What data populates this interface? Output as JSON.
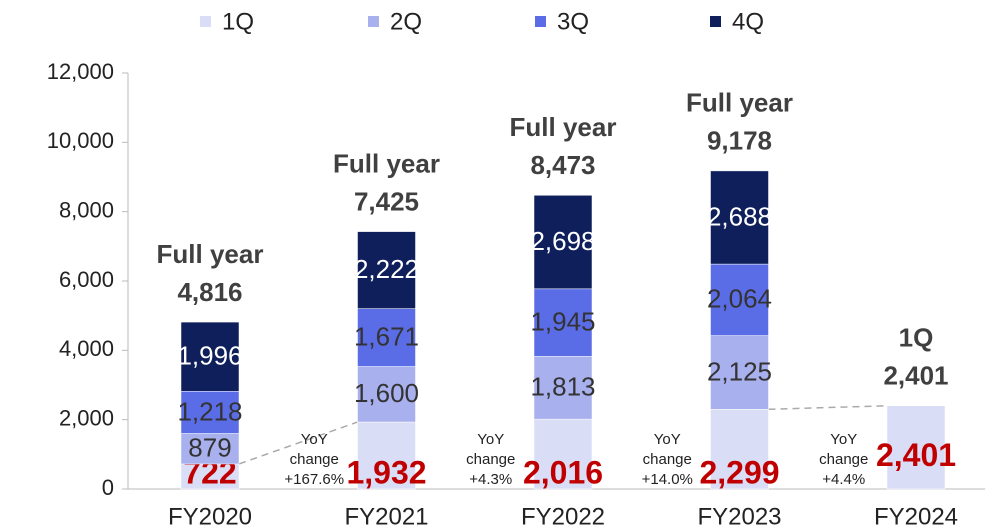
{
  "chart_data": {
    "type": "stacked_bar",
    "categories": [
      "FY2020",
      "FY2021",
      "FY2022",
      "FY2023",
      "FY2024"
    ],
    "series": [
      {
        "name": "1Q",
        "color": "#d9ddf6",
        "values": [
          722,
          1932,
          2016,
          2299,
          2401
        ],
        "value_labels": [
          "722",
          "1,932",
          "2,016",
          "2,299",
          "2,401"
        ]
      },
      {
        "name": "2Q",
        "color": "#a8b0ee",
        "values": [
          879,
          1600,
          1813,
          2125,
          null
        ],
        "value_labels": [
          "879",
          "1,600",
          "1,813",
          "2,125",
          null
        ]
      },
      {
        "name": "3Q",
        "color": "#5b6de6",
        "values": [
          1218,
          1671,
          1945,
          2064,
          null
        ],
        "value_labels": [
          "1,218",
          "1,671",
          "1,945",
          "2,064",
          null
        ]
      },
      {
        "name": "4Q",
        "color": "#0e1f5b",
        "values": [
          1996,
          2222,
          2698,
          2688,
          null
        ],
        "value_labels": [
          "1,996",
          "2,222",
          "2,698",
          "2,688",
          null
        ]
      }
    ],
    "totals": {
      "titles": [
        "Full year",
        "Full year",
        "Full year",
        "Full year",
        "1Q"
      ],
      "values": [
        4816,
        7425,
        8473,
        9178,
        2401
      ],
      "value_labels": [
        "4,816",
        "7,425",
        "8,473",
        "9,178",
        "2,401"
      ]
    },
    "yoy": [
      {
        "lines": [
          "YoY",
          "change",
          "+167.6%"
        ]
      },
      {
        "lines": [
          "YoY",
          "change",
          "+4.3%"
        ]
      },
      {
        "lines": [
          "YoY",
          "change",
          "+14.0%"
        ]
      },
      {
        "lines": [
          "YoY",
          "change",
          "+4.4%"
        ]
      }
    ],
    "ylim": [
      0,
      12000
    ],
    "yticks": [
      0,
      {
        "value": 2000,
        "label": "2,000"
      },
      {
        "value": 4000,
        "label": "4,000"
      },
      {
        "value": 6000,
        "label": "6,000"
      },
      {
        "value": 8000,
        "label": "8,000"
      },
      {
        "value": 10000,
        "label": "10,000"
      },
      {
        "value": 12000,
        "label": "12,000"
      }
    ],
    "highlight_color": "#c00000"
  }
}
